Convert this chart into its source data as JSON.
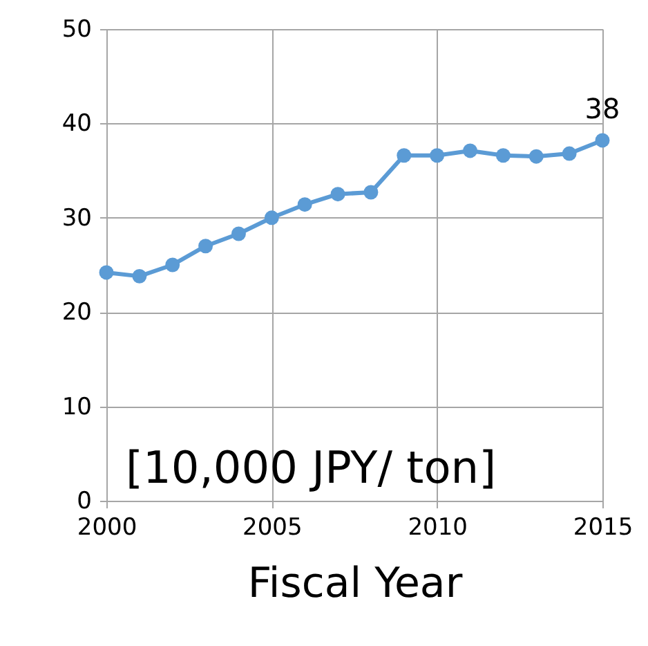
{
  "chart_data": {
    "type": "line",
    "xlabel": "Fiscal Year",
    "annotations": [
      "[10,000 JPY/ ton]"
    ],
    "x": [
      2000,
      2001,
      2002,
      2003,
      2004,
      2005,
      2006,
      2007,
      2008,
      2009,
      2010,
      2011,
      2012,
      2013,
      2014,
      2015
    ],
    "series": [
      {
        "color": "#5b9bd5",
        "values": [
          24.2,
          23.8,
          25.0,
          27.0,
          28.3,
          30.0,
          31.4,
          32.5,
          32.7,
          36.6,
          36.6,
          37.1,
          36.6,
          36.5,
          36.8,
          38.2
        ],
        "value_labels": [
          null,
          null,
          null,
          null,
          null,
          null,
          null,
          null,
          null,
          null,
          null,
          null,
          null,
          null,
          null,
          "38"
        ]
      }
    ],
    "xlim": [
      2000,
      2015
    ],
    "xticks": [
      2000,
      2005,
      2010,
      2015
    ],
    "ylim": [
      0,
      50
    ],
    "yticks": [
      0,
      10,
      20,
      30,
      40,
      50
    ],
    "grid": true,
    "marker": "circle",
    "line_style": "solid"
  }
}
